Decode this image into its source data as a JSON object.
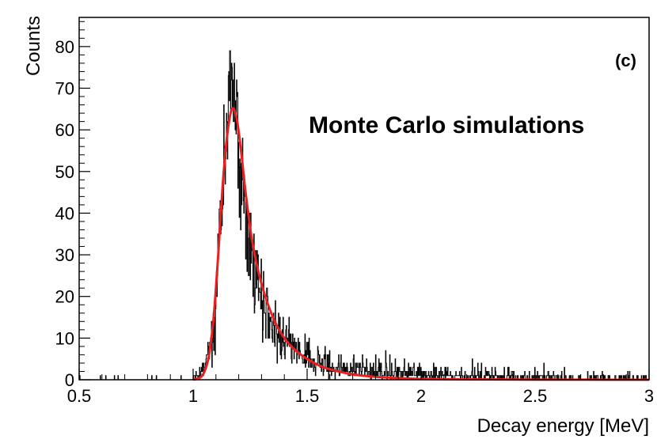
{
  "chart_data": {
    "type": "histogram",
    "xlabel": "Decay energy [MeV]",
    "ylabel": "Counts",
    "xlim": [
      0.5,
      3.0
    ],
    "ylim": [
      0,
      87
    ],
    "x_ticks": [
      0.5,
      1,
      1.5,
      2,
      2.5,
      3
    ],
    "x_tick_labels": [
      "0.5",
      "1",
      "1.5",
      "2",
      "2.5",
      "3"
    ],
    "y_ticks": [
      0,
      10,
      20,
      30,
      40,
      50,
      60,
      70,
      80
    ],
    "y_tick_labels": [
      "0",
      "10",
      "20",
      "30",
      "40",
      "50",
      "60",
      "70",
      "80"
    ],
    "grid": false,
    "annotations": [
      {
        "text": "(c)",
        "position": "top-right"
      },
      {
        "text": "Monte Carlo simulations",
        "position": "upper-right"
      }
    ],
    "series": [
      {
        "kind": "histogram",
        "color": "#000000",
        "bin_width_mev": 0.002,
        "profile_points": [
          [
            0.5,
            0
          ],
          [
            1.0,
            0.3
          ],
          [
            1.03,
            1
          ],
          [
            1.06,
            4
          ],
          [
            1.08,
            9
          ],
          [
            1.1,
            20
          ],
          [
            1.12,
            38
          ],
          [
            1.14,
            56
          ],
          [
            1.16,
            66
          ],
          [
            1.17,
            68
          ],
          [
            1.18,
            66
          ],
          [
            1.2,
            57
          ],
          [
            1.22,
            46
          ],
          [
            1.25,
            33
          ],
          [
            1.28,
            24
          ],
          [
            1.32,
            17
          ],
          [
            1.36,
            12
          ],
          [
            1.4,
            9
          ],
          [
            1.45,
            6.5
          ],
          [
            1.5,
            5
          ],
          [
            1.6,
            3.5
          ],
          [
            1.7,
            2.5
          ],
          [
            1.8,
            2
          ],
          [
            2.0,
            1.5
          ],
          [
            2.2,
            1
          ],
          [
            2.5,
            0.6
          ],
          [
            3.0,
            0.3
          ]
        ],
        "max_counts": 79
      },
      {
        "kind": "fit",
        "color": "#e8201f",
        "points": [
          [
            1.0,
            0
          ],
          [
            1.03,
            0.5
          ],
          [
            1.05,
            2
          ],
          [
            1.07,
            6
          ],
          [
            1.09,
            15
          ],
          [
            1.11,
            30
          ],
          [
            1.13,
            47
          ],
          [
            1.15,
            59
          ],
          [
            1.17,
            65
          ],
          [
            1.19,
            63
          ],
          [
            1.21,
            55
          ],
          [
            1.23,
            45
          ],
          [
            1.26,
            33
          ],
          [
            1.3,
            23
          ],
          [
            1.35,
            15
          ],
          [
            1.4,
            10
          ],
          [
            1.45,
            7
          ],
          [
            1.5,
            5
          ],
          [
            1.55,
            3.5
          ],
          [
            1.6,
            2.5
          ],
          [
            1.7,
            1.3
          ],
          [
            1.8,
            0.7
          ],
          [
            1.9,
            0.4
          ],
          [
            2.0,
            0.2
          ],
          [
            2.2,
            0.1
          ],
          [
            2.5,
            0.03
          ],
          [
            3.0,
            0
          ]
        ]
      }
    ]
  }
}
